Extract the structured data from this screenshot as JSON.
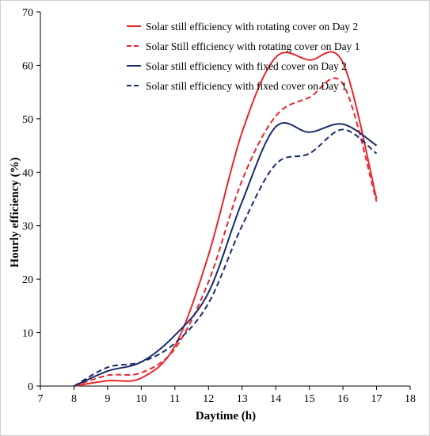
{
  "chart_data": {
    "type": "line",
    "title": "",
    "xlabel": "Daytime (h)",
    "ylabel": "Hourly efficiency (%)",
    "xlim": [
      7,
      18
    ],
    "ylim": [
      0,
      70
    ],
    "xticks": [
      7,
      8,
      9,
      10,
      11,
      12,
      13,
      14,
      15,
      16,
      17,
      18
    ],
    "yticks": [
      0,
      10,
      20,
      30,
      40,
      50,
      60,
      70
    ],
    "legend_position": "top-right",
    "grid": false,
    "series": [
      {
        "name": "Solar still efficiency with rotating cover on Day 2",
        "color": "#e8262b",
        "dash": "solid",
        "x": [
          8,
          9,
          10,
          11,
          12,
          13,
          14,
          15,
          16,
          17
        ],
        "y": [
          0,
          1.0,
          1.5,
          7.5,
          24.5,
          47.5,
          61.5,
          61.0,
          60.5,
          35.0
        ]
      },
      {
        "name": "Solar Still efficiency with rotating cover on Day 1",
        "color": "#e8262b",
        "dash": "dashed",
        "x": [
          8,
          9,
          10,
          11,
          12,
          13,
          14,
          15,
          16,
          17
        ],
        "y": [
          0,
          2.0,
          2.5,
          7.0,
          19.5,
          38.5,
          50.5,
          54.0,
          56.5,
          34.5
        ]
      },
      {
        "name": "Solar still efficiency with fixed cover on Day 2",
        "color": "#1a2c6b",
        "dash": "solid",
        "x": [
          8,
          9,
          10,
          11,
          12,
          13,
          14,
          15,
          16,
          17
        ],
        "y": [
          0,
          2.8,
          4.5,
          9.5,
          17.5,
          34.5,
          48.5,
          47.5,
          49.0,
          45.0
        ]
      },
      {
        "name": "Solar still efficiency with fixed cover on Day 1",
        "color": "#1a2c6b",
        "dash": "dashed",
        "x": [
          8,
          9,
          10,
          11,
          12,
          13,
          14,
          15,
          16,
          17
        ],
        "y": [
          0,
          3.5,
          4.5,
          8.0,
          15.5,
          30.0,
          41.5,
          43.5,
          48.0,
          43.5
        ]
      }
    ]
  }
}
